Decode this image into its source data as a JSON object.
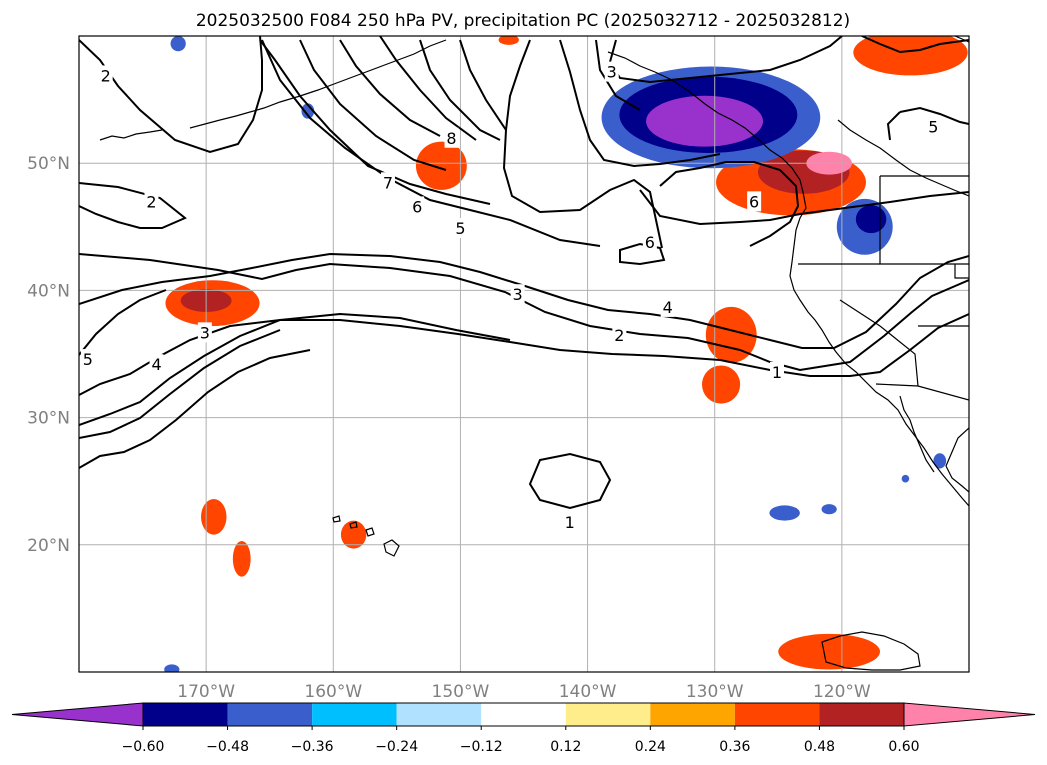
{
  "chart_data": {
    "type": "contour map",
    "title": "2025032500 F084 250 hPa PV, precipitation PC (2025032712 - 2025032812)",
    "x_axis": {
      "ticks": [
        -170,
        -160,
        -150,
        -140,
        -130,
        -120
      ],
      "tick_labels": [
        "170°W",
        "160°W",
        "150°W",
        "140°W",
        "130°W",
        "120°W"
      ],
      "range": [
        -180,
        -110
      ]
    },
    "y_axis": {
      "ticks": [
        20,
        30,
        40,
        50
      ],
      "tick_labels": [
        "20°N",
        "30°N",
        "40°N",
        "50°N"
      ],
      "range": [
        10,
        60
      ]
    },
    "grid": true,
    "colorbar": {
      "orientation": "horizontal",
      "extend": "both",
      "bounds": [
        -0.6,
        -0.48,
        -0.36,
        -0.24,
        -0.12,
        0.12,
        0.24,
        0.36,
        0.48,
        0.6
      ],
      "tick_labels": [
        "−0.60",
        "−0.48",
        "−0.36",
        "−0.24",
        "−0.12",
        "0.12",
        "0.24",
        "0.36",
        "0.48",
        "0.60"
      ],
      "colors": [
        "#9932cc",
        "#00008b",
        "#3a5fcd",
        "#00bfff",
        "#b0e2ff",
        "#ffffff",
        "#ffec8b",
        "#ffa500",
        "#ff4500",
        "#b22222",
        "#ff82ab"
      ]
    },
    "contour_labels": [
      {
        "text": "2",
        "lon": -177.9,
        "lat": 56.9
      },
      {
        "text": "2",
        "lon": -174.3,
        "lat": 47.0
      },
      {
        "text": "3",
        "lon": -138.1,
        "lat": 57.2
      },
      {
        "text": "8",
        "lon": -150.7,
        "lat": 52.0
      },
      {
        "text": "7",
        "lon": -155.7,
        "lat": 48.5
      },
      {
        "text": "6",
        "lon": -153.4,
        "lat": 46.6
      },
      {
        "text": "5",
        "lon": -150.0,
        "lat": 44.9
      },
      {
        "text": "6",
        "lon": -135.1,
        "lat": 43.8
      },
      {
        "text": "6",
        "lon": -126.9,
        "lat": 47.0
      },
      {
        "text": "5",
        "lon": -112.8,
        "lat": 52.9
      },
      {
        "text": "3",
        "lon": -145.5,
        "lat": 39.7
      },
      {
        "text": "4",
        "lon": -133.7,
        "lat": 38.7
      },
      {
        "text": "2",
        "lon": -137.5,
        "lat": 36.5
      },
      {
        "text": "1",
        "lon": -125.1,
        "lat": 33.6
      },
      {
        "text": "3",
        "lon": -170.1,
        "lat": 36.7
      },
      {
        "text": "4",
        "lon": -173.9,
        "lat": 34.2
      },
      {
        "text": "5",
        "lon": -179.3,
        "lat": 34.6
      },
      {
        "text": "1",
        "lon": -141.4,
        "lat": 21.8
      }
    ],
    "precip_areas": [
      {
        "color": "#ff4500",
        "lon": -169.5,
        "lat": 39.0,
        "rlon": 3.7,
        "rlat": 1.8
      },
      {
        "color": "#b22222",
        "lon": -170.0,
        "lat": 39.2,
        "rlon": 2.0,
        "rlat": 0.9
      },
      {
        "color": "#ff4500",
        "lon": -151.5,
        "lat": 49.8,
        "rlon": 2.0,
        "rlat": 1.9
      },
      {
        "color": "#ff4500",
        "lon": -128.7,
        "lat": 36.5,
        "rlon": 2.0,
        "rlat": 2.2
      },
      {
        "color": "#ff4500",
        "lon": -129.5,
        "lat": 32.6,
        "rlon": 1.5,
        "rlat": 1.5
      },
      {
        "color": "#ff4500",
        "lon": -124.0,
        "lat": 48.5,
        "rlon": 5.9,
        "rlat": 2.6
      },
      {
        "color": "#b22222",
        "lon": -123.0,
        "lat": 49.3,
        "rlon": 3.6,
        "rlat": 1.7
      },
      {
        "color": "#ff82ab",
        "lon": -121.0,
        "lat": 50.0,
        "rlon": 1.8,
        "rlat": 0.9
      },
      {
        "color": "#ff4500",
        "lon": -114.6,
        "lat": 58.7,
        "rlon": 4.5,
        "rlat": 1.8
      },
      {
        "color": "#ff4500",
        "lon": -121.0,
        "lat": 11.6,
        "rlon": 4.0,
        "rlat": 1.4
      },
      {
        "color": "#ff4500",
        "lon": -169.4,
        "lat": 22.2,
        "rlon": 1.0,
        "rlat": 1.4
      },
      {
        "color": "#ff4500",
        "lon": -167.2,
        "lat": 18.9,
        "rlon": 0.7,
        "rlat": 1.4
      },
      {
        "color": "#ff4500",
        "lon": -158.4,
        "lat": 20.8,
        "rlon": 1.0,
        "rlat": 1.1
      },
      {
        "color": "#3a5fcd",
        "lon": -130.3,
        "lat": 53.6,
        "rlon": 8.6,
        "rlat": 4.0
      },
      {
        "color": "#00008b",
        "lon": -130.5,
        "lat": 53.8,
        "rlon": 7.0,
        "rlat": 3.0
      },
      {
        "color": "#9932cc",
        "lon": -130.8,
        "lat": 53.3,
        "rlon": 4.6,
        "rlat": 2.0
      },
      {
        "color": "#3a5fcd",
        "lon": -118.2,
        "lat": 45.0,
        "rlon": 2.2,
        "rlat": 2.2
      },
      {
        "color": "#00008b",
        "lon": -117.7,
        "lat": 45.6,
        "rlon": 1.2,
        "rlat": 1.1
      },
      {
        "color": "#3a5fcd",
        "lon": -124.5,
        "lat": 22.5,
        "rlon": 1.2,
        "rlat": 0.6
      },
      {
        "color": "#3a5fcd",
        "lon": -121.0,
        "lat": 22.8,
        "rlon": 0.6,
        "rlat": 0.4
      },
      {
        "color": "#3a5fcd",
        "lon": -172.2,
        "lat": 59.4,
        "rlon": 0.6,
        "rlat": 0.6
      },
      {
        "color": "#3a5fcd",
        "lon": -162.0,
        "lat": 54.1,
        "rlon": 0.5,
        "rlat": 0.6
      },
      {
        "color": "#3a5fcd",
        "lon": -112.3,
        "lat": 26.6,
        "rlon": 0.5,
        "rlat": 0.6
      },
      {
        "color": "#3a5fcd",
        "lon": -115.0,
        "lat": 25.2,
        "rlon": 0.3,
        "rlat": 0.3
      },
      {
        "color": "#3a5fcd",
        "lon": -172.7,
        "lat": 10.2,
        "rlon": 0.6,
        "rlat": 0.4
      },
      {
        "color": "#ff4500",
        "lon": -146.2,
        "lat": 59.7,
        "rlon": 0.8,
        "rlat": 0.4
      }
    ]
  }
}
